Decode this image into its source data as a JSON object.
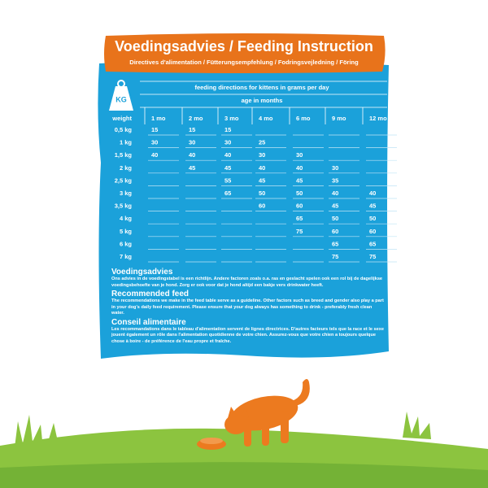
{
  "header": {
    "title": "Voedingsadvies / Feeding Instruction",
    "subtitle": "Directives d'alimentation / Fütterungsempfehlung / Fodringsvejledning / Föring"
  },
  "table": {
    "icon": "KG",
    "caption": "feeding directions for kittens in grams per day",
    "subcaption": "age in months",
    "columns": [
      "weight",
      "1 mo",
      "2 mo",
      "3 mo",
      "4 mo",
      "6 mo",
      "9 mo",
      "12 mo"
    ],
    "rows": [
      [
        "0,5 kg",
        15,
        15,
        15,
        null,
        null,
        null,
        null
      ],
      [
        "1 kg",
        30,
        30,
        30,
        25,
        null,
        null,
        null
      ],
      [
        "1,5 kg",
        40,
        40,
        40,
        30,
        30,
        null,
        null
      ],
      [
        "2 kg",
        null,
        45,
        45,
        40,
        40,
        30,
        null
      ],
      [
        "2,5 kg",
        null,
        null,
        55,
        45,
        45,
        35,
        null
      ],
      [
        "3 kg",
        null,
        null,
        65,
        50,
        50,
        40,
        40
      ],
      [
        "3,5 kg",
        null,
        null,
        null,
        60,
        60,
        45,
        45
      ],
      [
        "4 kg",
        null,
        null,
        null,
        null,
        65,
        50,
        50
      ],
      [
        "5 kg",
        null,
        null,
        null,
        null,
        75,
        60,
        60
      ],
      [
        "6 kg",
        null,
        null,
        null,
        null,
        null,
        65,
        65
      ],
      [
        "7 kg",
        null,
        null,
        null,
        null,
        null,
        75,
        75
      ]
    ]
  },
  "sections": [
    {
      "heading": "Voedingsadvies",
      "text": "Ons advies in de voedingstabel is een richtlijn. Andere factoren zoals o.a. ras en geslacht spelen ook een rol bij de dagelijkse voedingsbehoefte van je hond. Zorg er ook voor dat je hond altijd een bakje vers drinkwater heeft."
    },
    {
      "heading": "Recommended feed",
      "text": "The recommendations we make in the feed table serve as a guideline. Other factors such as breed and gender also play a part in your dog's daily feed requirement. Please ensure that your dog always has something to drink - preferably fresh clean water."
    },
    {
      "heading": "Conseil alimentaire",
      "text": "Les recommandations dans le tableau d'alimentation servent de lignes directrices. D'autres facteurs tels que la race et le sexe jouent également un rôle dans l'alimentation quotidienne de votre chien. Assurez-vous que votre chien a toujours quelque chose à boire - de préférence de l'eau propre et fraîche."
    }
  ]
}
